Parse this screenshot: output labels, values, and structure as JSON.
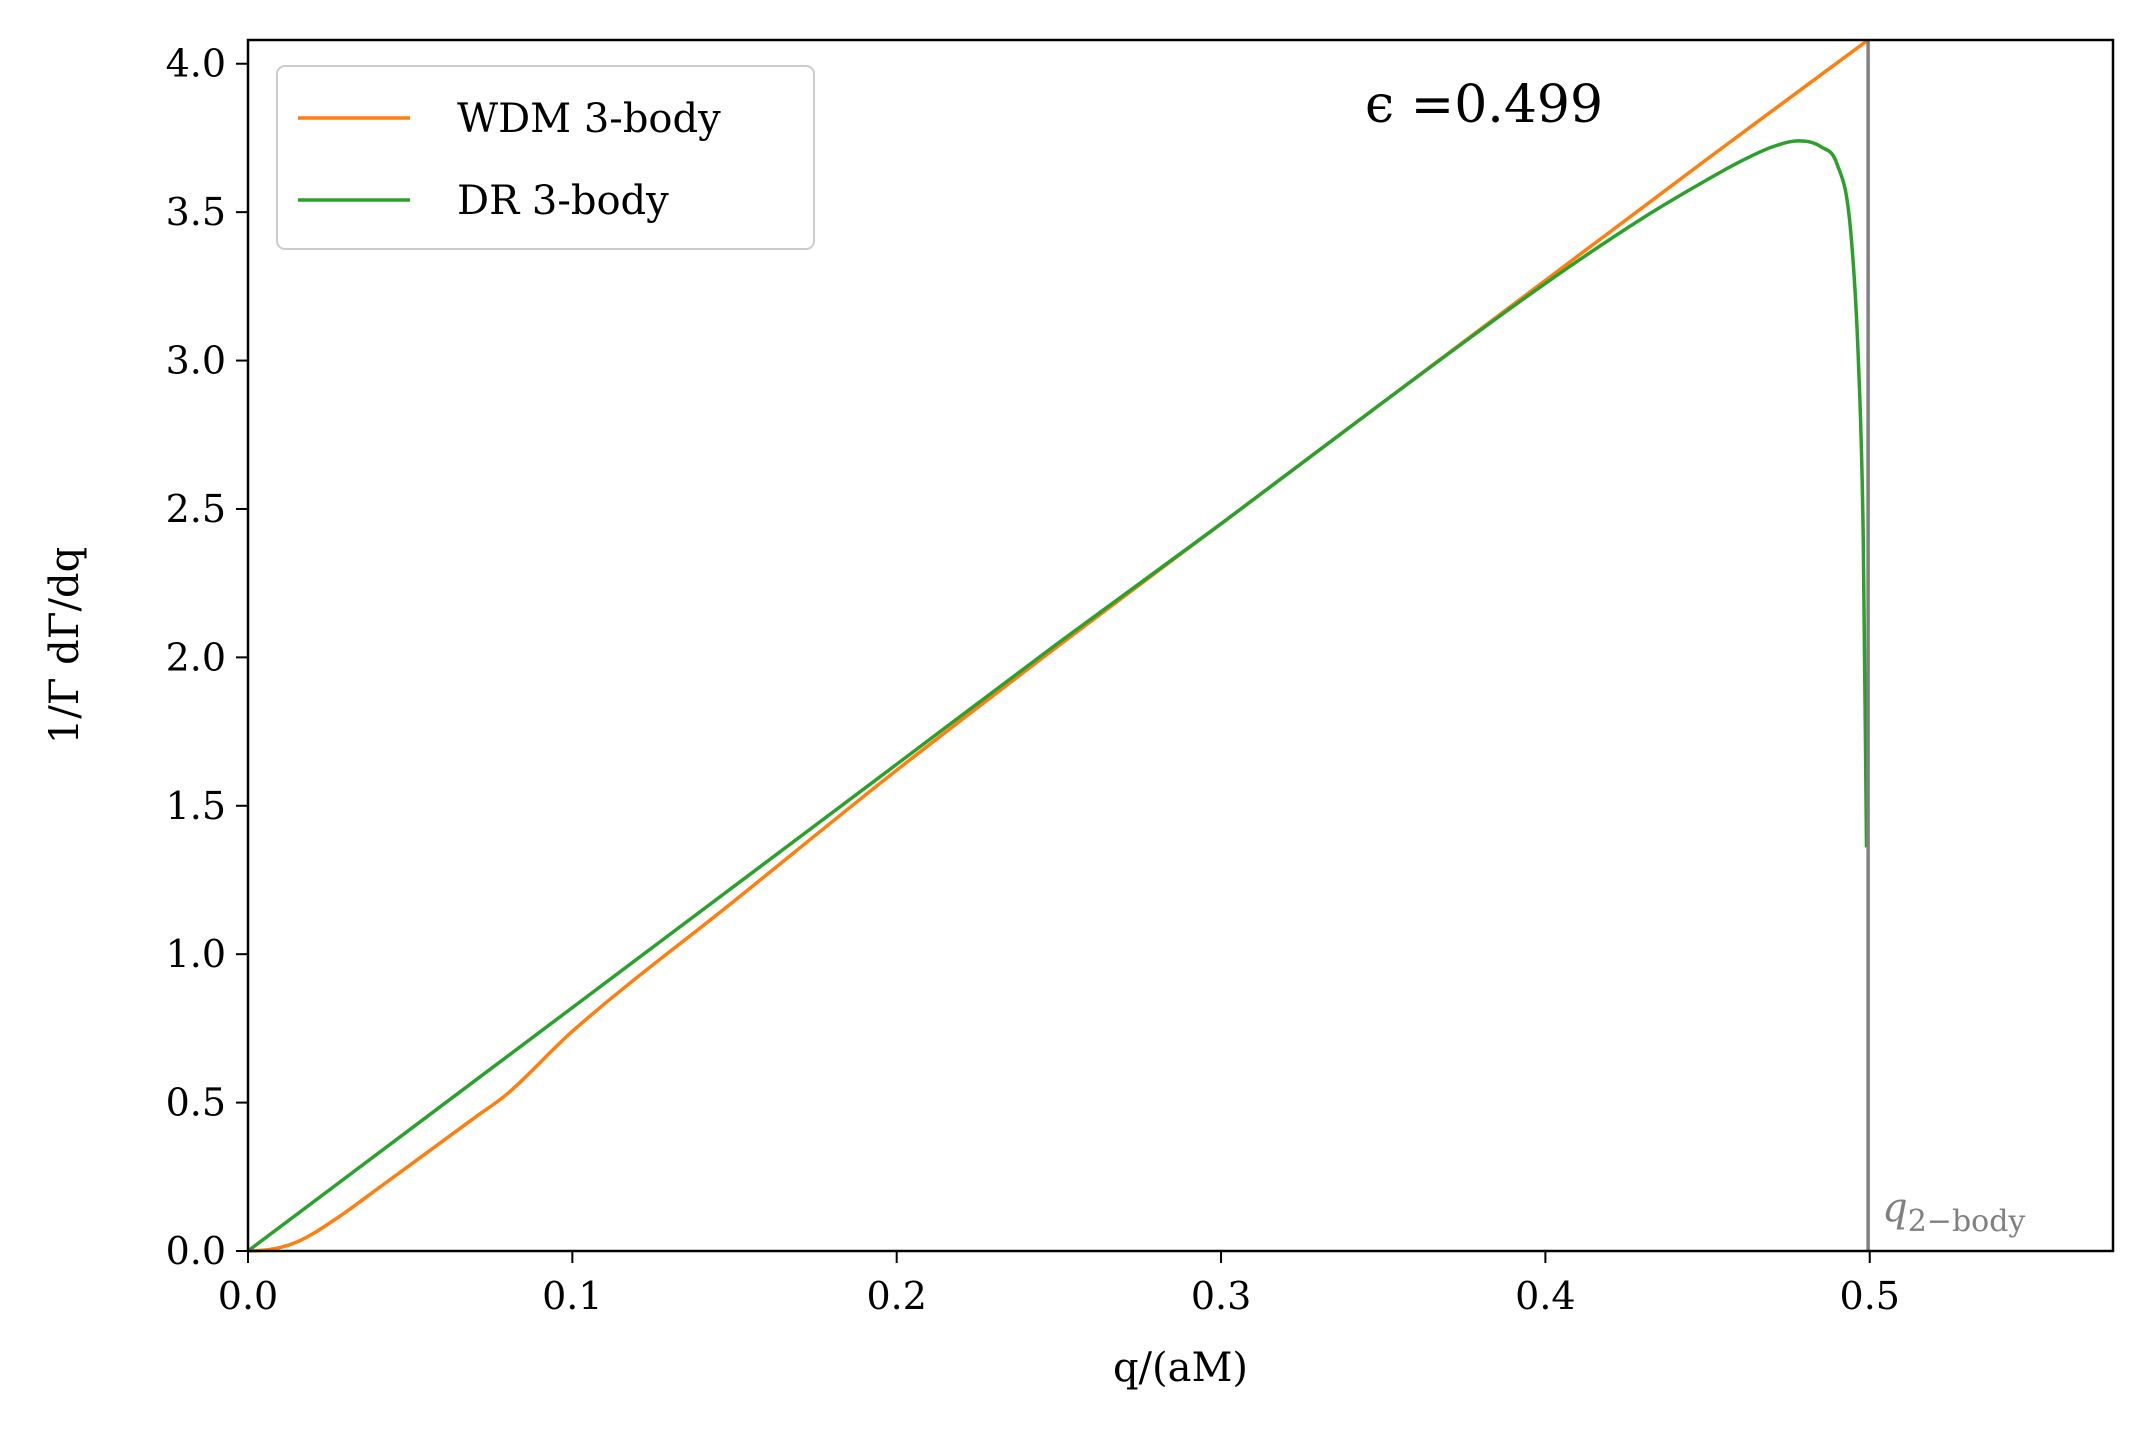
{
  "chart_data": {
    "type": "line",
    "xlabel": "q/(aM)",
    "ylabel": "1/Γ dΓ/dq",
    "xlim": [
      0.0,
      0.575
    ],
    "ylim": [
      0.0,
      4.08
    ],
    "xticks": [
      "0.0",
      "0.1",
      "0.2",
      "0.3",
      "0.4",
      "0.5"
    ],
    "yticks": [
      "0.0",
      "0.5",
      "1.0",
      "1.5",
      "2.0",
      "2.5",
      "3.0",
      "3.5",
      "4.0"
    ],
    "grid": false,
    "legend_position": "upper-left",
    "annotation": "ϵ =0.499",
    "vertical_line": {
      "x": 0.4995,
      "label": "q",
      "label_sub": "2−body",
      "color": "#808080"
    },
    "series": [
      {
        "name": "WDM 3-body",
        "color": "#ff7f0e",
        "x": [
          0.0,
          0.005,
          0.01,
          0.015,
          0.02,
          0.025,
          0.03,
          0.04,
          0.05,
          0.06,
          0.07,
          0.08,
          0.1,
          0.15,
          0.2,
          0.25,
          0.3,
          0.35,
          0.4,
          0.45,
          0.4995
        ],
        "y": [
          0.0,
          0.003,
          0.012,
          0.03,
          0.058,
          0.093,
          0.13,
          0.21,
          0.29,
          0.37,
          0.45,
          0.53,
          0.74,
          1.18,
          1.62,
          2.04,
          2.45,
          2.86,
          3.27,
          3.68,
          4.08
        ]
      },
      {
        "name": "DR 3-body",
        "color": "#2ca02c",
        "x": [
          0.0,
          0.05,
          0.1,
          0.15,
          0.2,
          0.25,
          0.3,
          0.35,
          0.4,
          0.43,
          0.45,
          0.46,
          0.47,
          0.478,
          0.485,
          0.49,
          0.494,
          0.4965,
          0.498,
          0.499
        ],
        "y": [
          0.0,
          0.41,
          0.82,
          1.23,
          1.64,
          2.05,
          2.45,
          2.86,
          3.26,
          3.48,
          3.61,
          3.67,
          3.72,
          3.74,
          3.72,
          3.66,
          3.45,
          3.0,
          2.4,
          1.36
        ]
      }
    ]
  }
}
